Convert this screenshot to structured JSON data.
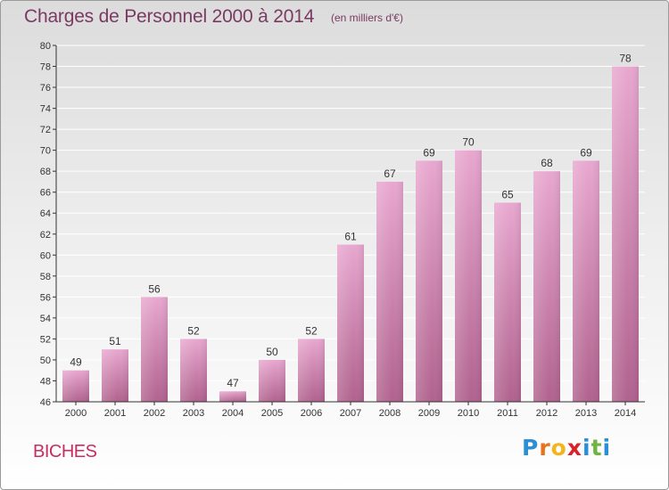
{
  "header": {
    "title": "Charges de Personnel 2000 à 2014",
    "unit": "(en milliers d'€)"
  },
  "footer": {
    "commune": "BICHES",
    "logo_letters": [
      "P",
      "r",
      "o",
      "x",
      "i",
      "t",
      "i"
    ],
    "logo_colors": [
      "#2a8fd4",
      "#e8731a",
      "#f2b51c",
      "#d8232a",
      "#2a8fd4",
      "#6fb43f",
      "#2a8fd4"
    ]
  },
  "colors": {
    "bar_top": "#e8a7cf",
    "bar_bottom": "#b0628e",
    "axis": "#333333",
    "grid": "#ffffff",
    "text": "#333333"
  },
  "chart_data": {
    "type": "bar",
    "title": "Charges de Personnel 2000 à 2014",
    "ylabel": "",
    "xlabel": "",
    "categories": [
      "2000",
      "2001",
      "2002",
      "2003",
      "2004",
      "2005",
      "2006",
      "2007",
      "2008",
      "2009",
      "2010",
      "2011",
      "2012",
      "2013",
      "2014"
    ],
    "values": [
      49,
      51,
      56,
      52,
      47,
      50,
      52,
      61,
      67,
      69,
      70,
      65,
      68,
      69,
      78
    ],
    "ylim": [
      46,
      80
    ],
    "yticks": [
      46,
      48,
      50,
      52,
      54,
      56,
      58,
      60,
      62,
      64,
      66,
      68,
      70,
      72,
      74,
      76,
      78,
      80
    ],
    "grid": true,
    "data_labels": true
  }
}
